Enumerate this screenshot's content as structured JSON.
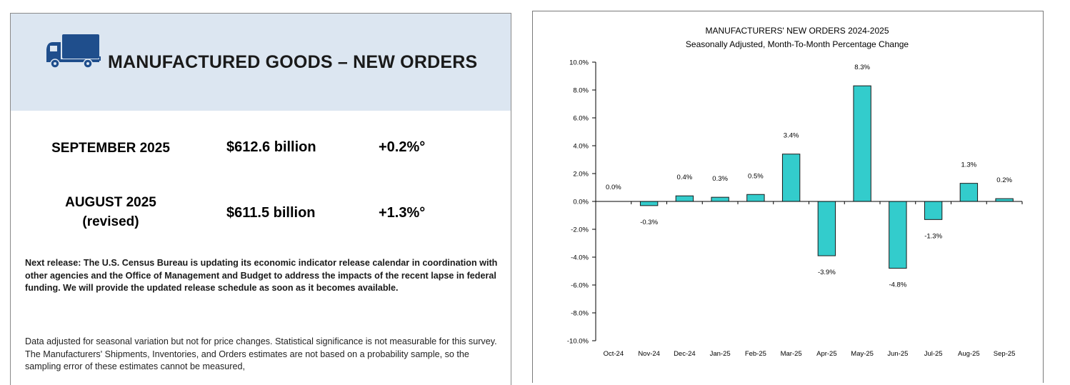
{
  "header": {
    "title": "MANUFACTURED GOODS – NEW ORDERS",
    "icon": "truck-icon",
    "band_color": "#dce6f1",
    "icon_color": "#1f4e8c"
  },
  "stats": [
    {
      "period": "SEPTEMBER 2025",
      "note": "",
      "value": "$612.6 billion",
      "change": "+0.2%°"
    },
    {
      "period": "AUGUST 2025",
      "note": "(revised)",
      "value": "$611.5 billion",
      "change": "+1.3%°"
    }
  ],
  "next_release": "Next release: The U.S. Census Bureau is updating its economic indicator release calendar in coordination with other agencies and the Office of Management and Budget to address the impacts of the recent lapse in federal funding.  We will provide the updated release schedule as soon as it becomes available.",
  "methodology": "Data adjusted for seasonal variation but not for price changes. Statistical significance is not measurable for this survey.  The Manufacturers' Shipments, Inventories, and Orders estimates are not based on a probability sample, so the sampling error of these estimates cannot be measured,",
  "chart_data": {
    "type": "bar",
    "title": "MANUFACTURERS' NEW ORDERS 2024-2025",
    "subtitle": "Seasonally Adjusted,  Month-To-Month Percentage Change",
    "categories": [
      "Oct-24",
      "Nov-24",
      "Dec-24",
      "Jan-25",
      "Feb-25",
      "Mar-25",
      "Apr-25",
      "May-25",
      "Jun-25",
      "Jul-25",
      "Aug-25",
      "Sep-25"
    ],
    "values": [
      0.0,
      -0.3,
      0.4,
      0.3,
      0.5,
      3.4,
      -3.9,
      8.3,
      -4.8,
      -1.3,
      1.3,
      0.2
    ],
    "data_labels": [
      "0.0%",
      "-0.3%",
      "0.4%",
      "0.3%",
      "0.5%",
      "3.4%",
      "-3.9%",
      "8.3%",
      "-4.8%",
      "-1.3%",
      "1.3%",
      "0.2%"
    ],
    "ylim": [
      -10,
      10
    ],
    "ytick_values": [
      10,
      8,
      6,
      4,
      2,
      0,
      -2,
      -4,
      -6,
      -8,
      -10
    ],
    "ytick_labels": [
      "10.0%",
      "8.0%",
      "6.0%",
      "4.0%",
      "2.0%",
      "0.0%",
      "-2.0%",
      "-4.0%",
      "-6.0%",
      "-8.0%",
      "-10.0%"
    ],
    "xlabel": "",
    "ylabel": "",
    "grid": false,
    "bar_color": "#33cccc",
    "bar_edge_color": "#1a1a1a"
  }
}
